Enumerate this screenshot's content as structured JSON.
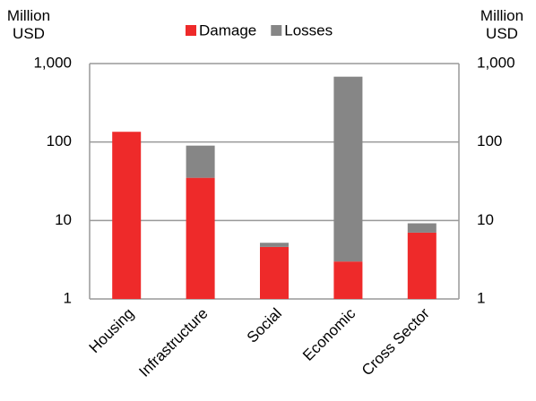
{
  "chart_data": {
    "type": "bar",
    "stacked": true,
    "log_scale": true,
    "y_label": "Million USD",
    "y2_label": "Million USD",
    "categories": [
      "Housing",
      "Infrastructure",
      "Social",
      "Economic",
      "Cross Sector"
    ],
    "series": [
      {
        "name": "Damage",
        "color": "#ee2a2a",
        "values": [
          135,
          35,
          4.6,
          3,
          7
        ]
      },
      {
        "name": "Losses",
        "color": "#868686",
        "values": [
          0,
          55,
          0.6,
          677,
          2.2
        ]
      }
    ],
    "ylim": [
      1,
      1000
    ],
    "yticks": [
      1,
      10,
      100,
      {
        "value": 1000,
        "label": "1,000"
      }
    ],
    "y2lim": [
      1,
      1000
    ],
    "y2ticks": [
      1,
      10,
      100,
      {
        "value": 1000,
        "label": "1,000"
      }
    ],
    "grid": true,
    "legend": "top"
  }
}
